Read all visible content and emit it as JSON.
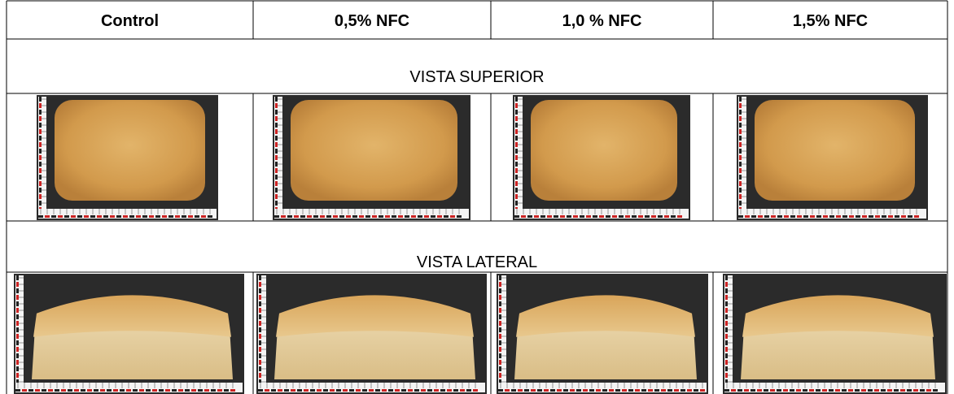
{
  "header": {
    "columns": [
      "Control",
      "0,5% NFC",
      "1,0 % NFC",
      "1,5% NFC"
    ]
  },
  "sections": [
    {
      "label": "VISTA SUPERIOR"
    },
    {
      "label": "VISTA LATERAL"
    }
  ]
}
